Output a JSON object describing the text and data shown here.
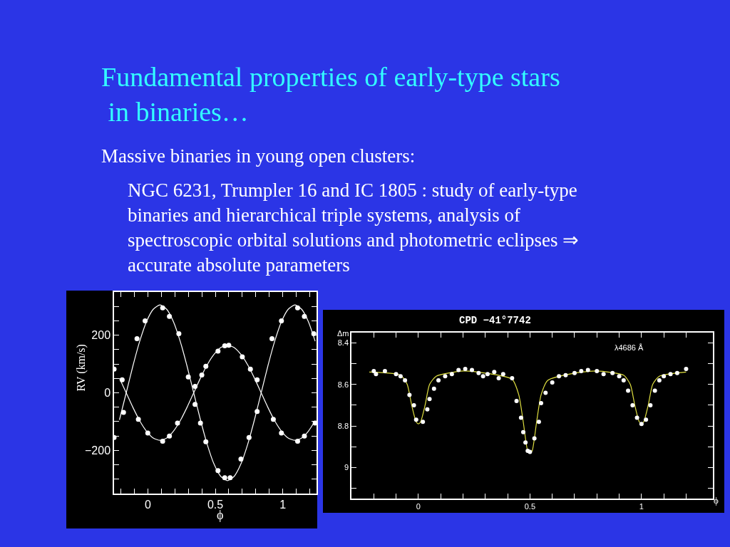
{
  "chart_data": [
    {
      "type": "line",
      "title": "Fundamental properties of early-type stars in binaries…",
      "subtitle": "Massive binaries in young open clusters:",
      "annotations": [
        "NGC 6231, Trumpler 16 and IC 1805 : study of early-type binaries and hierarchical triple systems, analysis of spectroscopic orbital solutions and photometric eclipses ⇒ accurate absolute parameters"
      ],
      "xlabel": "ϕ",
      "ylabel": "RV (km/s)",
      "xlim": [
        -0.25,
        1.25
      ],
      "xticks": [
        0,
        0.5,
        1,
        {
          "value": -0.2,
          "label": null
        },
        {
          "value": -0.1,
          "label": null
        },
        {
          "value": 0.1,
          "label": null
        },
        {
          "value": 0.2,
          "label": null
        },
        {
          "value": 0.3,
          "label": null
        },
        {
          "value": 0.4,
          "label": null
        },
        {
          "value": 0.6,
          "label": null
        },
        {
          "value": 0.7,
          "label": null
        },
        {
          "value": 0.8,
          "label": null
        },
        {
          "value": 0.9,
          "label": null
        },
        {
          "value": 1.1,
          "label": null
        },
        {
          "value": 1.2,
          "label": null
        }
      ],
      "ylim": [
        -350,
        350
      ],
      "yticks": [
        {
          "value": -200,
          "label": "−200"
        },
        0,
        200,
        {
          "value": -300,
          "label": null
        },
        {
          "value": -250,
          "label": null
        },
        {
          "value": -150,
          "label": null
        },
        {
          "value": -100,
          "label": null
        },
        {
          "value": -50,
          "label": null
        },
        {
          "value": 50,
          "label": null
        },
        {
          "value": 100,
          "label": null
        },
        {
          "value": 150,
          "label": null
        },
        {
          "value": 250,
          "label": null
        },
        {
          "value": 300,
          "label": null
        }
      ],
      "grid": false,
      "series": [
        {
          "color": "#ffffff",
          "marker": "none",
          "x": [
            -0.21,
            -0.16,
            -0.11,
            -0.06,
            -0.01,
            0.04,
            0.09,
            0.14,
            0.19,
            0.24,
            0.29,
            0.34,
            0.39,
            0.44,
            0.49,
            0.54,
            0.59,
            0.64,
            0.69,
            0.74,
            0.79,
            0.84,
            0.89,
            0.94,
            0.99,
            1.04,
            1.09,
            1.14,
            1.19,
            1.24
          ],
          "values": [
            51,
            0,
            -51,
            -97,
            -133,
            -157,
            -165,
            -157,
            -133,
            -97,
            -51,
            0,
            51,
            97,
            133,
            157,
            165,
            157,
            133,
            97,
            51,
            0,
            -51,
            -97,
            -133,
            -157,
            -165,
            -157,
            -133,
            -97
          ]
        },
        {
          "color": "#ffffff",
          "marker": "none",
          "x": [
            -0.21,
            -0.16,
            -0.11,
            -0.06,
            -0.01,
            0.04,
            0.09,
            0.14,
            0.19,
            0.24,
            0.29,
            0.34,
            0.39,
            0.44,
            0.49,
            0.54,
            0.59,
            0.64,
            0.69,
            0.74,
            0.79,
            0.84,
            0.89,
            0.94,
            0.99,
            1.04,
            1.09,
            1.14,
            1.19,
            1.24
          ],
          "values": [
            -94,
            0,
            94,
            179,
            247,
            290,
            305,
            290,
            247,
            179,
            94,
            0,
            -94,
            -179,
            -247,
            -290,
            -305,
            -290,
            -247,
            -179,
            -94,
            0,
            94,
            179,
            247,
            290,
            305,
            290,
            247,
            179
          ]
        },
        {
          "type": "scatter",
          "color": "#ffffff",
          "marker": "circle",
          "x": [
            -0.25,
            -0.19,
            -0.07,
            0.0,
            0.11,
            0.16,
            0.22,
            0.35,
            0.4,
            0.43,
            0.52,
            0.57,
            0.6,
            0.7,
            0.76,
            0.81,
            0.93,
            0.99,
            1.11,
            1.16,
            1.24
          ],
          "values": [
            82,
            45,
            -92,
            -140,
            -168,
            -150,
            -105,
            22,
            62,
            92,
            145,
            163,
            165,
            125,
            82,
            45,
            -92,
            -140,
            -168,
            -150,
            -105
          ]
        },
        {
          "type": "scatter",
          "color": "#ffffff",
          "marker": "circle",
          "x": [
            -0.25,
            -0.18,
            -0.08,
            -0.02,
            0.11,
            0.16,
            0.23,
            0.3,
            0.35,
            0.39,
            0.43,
            0.52,
            0.57,
            0.61,
            0.69,
            0.75,
            0.81,
            0.92,
            0.99,
            1.11,
            1.16,
            1.23
          ],
          "values": [
            -155,
            -68,
            188,
            250,
            295,
            265,
            205,
            55,
            -40,
            -105,
            -170,
            -270,
            -295,
            -295,
            -230,
            -155,
            -65,
            188,
            250,
            295,
            265,
            205
          ]
        }
      ]
    },
    {
      "type": "line",
      "title": "CPD −41°7742",
      "xlabel": "ϕ",
      "ylabel": "Δm",
      "annotations": [
        "λ4686 Å"
      ],
      "xlim": [
        -0.3,
        1.32
      ],
      "xticks": [
        0,
        0.5,
        1,
        {
          "value": -0.2,
          "label": null
        },
        {
          "value": -0.1,
          "label": null
        },
        {
          "value": 0.1,
          "label": null
        },
        {
          "value": 0.2,
          "label": null
        },
        {
          "value": 0.3,
          "label": null
        },
        {
          "value": 0.4,
          "label": null
        },
        {
          "value": 0.6,
          "label": null
        },
        {
          "value": 0.7,
          "label": null
        },
        {
          "value": 0.8,
          "label": null
        },
        {
          "value": 0.9,
          "label": null
        },
        {
          "value": 1.1,
          "label": null
        },
        {
          "value": 1.2,
          "label": null
        }
      ],
      "ylim": [
        9.15,
        8.35
      ],
      "yticks": [
        8.4,
        8.6,
        8.8,
        9,
        {
          "value": 8.5,
          "label": null
        },
        {
          "value": 8.7,
          "label": null
        },
        {
          "value": 8.9,
          "label": null
        },
        {
          "value": 9.1,
          "label": null
        }
      ],
      "grid": false,
      "series": [
        {
          "color": "#e0e040",
          "marker": "none",
          "x": [
            -0.22,
            -0.08,
            -0.05,
            -0.03,
            -0.01,
            0,
            0.01,
            0.03,
            0.05,
            0.08,
            0.2,
            0.3,
            0.42,
            0.45,
            0.47,
            0.49,
            0.5,
            0.51,
            0.53,
            0.55,
            0.58,
            0.7,
            0.8,
            0.92,
            0.95,
            0.97,
            0.99,
            1,
            1.01,
            1.03,
            1.05,
            1.08,
            1.2
          ],
          "values": [
            8.54,
            8.555,
            8.6,
            8.7,
            8.78,
            8.79,
            8.78,
            8.7,
            8.6,
            8.56,
            8.535,
            8.545,
            8.575,
            8.65,
            8.78,
            8.92,
            8.93,
            8.92,
            8.78,
            8.65,
            8.58,
            8.545,
            8.535,
            8.555,
            8.6,
            8.7,
            8.78,
            8.79,
            8.78,
            8.7,
            8.6,
            8.56,
            8.54
          ]
        },
        {
          "type": "scatter",
          "color": "#ffffff",
          "marker": "circle",
          "x": [
            -0.2,
            -0.19,
            -0.15,
            -0.1,
            -0.08,
            -0.06,
            -0.04,
            -0.02,
            -0.01,
            0.02,
            0.04,
            0.05,
            0.07,
            0.09,
            0.12,
            0.15,
            0.18,
            0.21,
            0.24,
            0.27,
            0.29,
            0.31,
            0.34,
            0.36,
            0.38,
            0.42,
            0.44,
            0.46,
            0.47,
            0.48,
            0.49,
            0.5,
            0.52,
            0.54,
            0.55,
            0.57,
            0.6,
            0.63,
            0.66,
            0.7,
            0.73,
            0.76,
            0.8,
            0.83,
            0.87,
            0.9,
            0.92,
            0.94,
            0.96,
            0.98,
            1.0,
            1.02,
            1.04,
            1.06,
            1.08,
            1.1,
            1.13,
            1.16,
            1.2
          ],
          "values": [
            8.535,
            8.55,
            8.535,
            8.55,
            8.56,
            8.58,
            8.65,
            8.7,
            8.77,
            8.78,
            8.72,
            8.67,
            8.62,
            8.58,
            8.56,
            8.55,
            8.53,
            8.525,
            8.53,
            8.545,
            8.56,
            8.55,
            8.54,
            8.57,
            8.55,
            8.57,
            8.68,
            8.76,
            8.83,
            8.88,
            8.92,
            8.925,
            8.86,
            8.78,
            8.69,
            8.64,
            8.59,
            8.56,
            8.555,
            8.545,
            8.535,
            8.53,
            8.535,
            8.55,
            8.545,
            8.56,
            8.58,
            8.63,
            8.7,
            8.76,
            8.79,
            8.77,
            8.7,
            8.63,
            8.58,
            8.56,
            8.55,
            8.545,
            8.525
          ]
        }
      ]
    }
  ]
}
